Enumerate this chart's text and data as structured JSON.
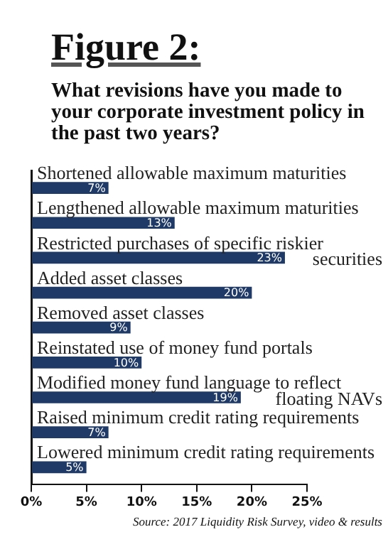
{
  "chart_data": {
    "type": "bar",
    "orientation": "horizontal",
    "title": "Figure 2:",
    "subtitle": "What revisions have you made to your corporate investment policy in the past two years?",
    "categories": [
      "Shortened allowable maximum maturities",
      "Lengthened allowable maximum maturities",
      "Restricted purchases of specific riskier securities",
      "Added asset classes",
      "Removed asset classes",
      "Reinstated use of money fund portals",
      "Modified money fund language to reflect floating NAVs",
      "Raised minimum credit rating requirements",
      "Lowered minimum credit rating requirements"
    ],
    "values": [
      7,
      13,
      23,
      20,
      9,
      10,
      19,
      7,
      5
    ],
    "value_labels": [
      "7%",
      "13%",
      "23%",
      "20%",
      "9%",
      "10%",
      "19%",
      "7%",
      "5%"
    ],
    "color": "#1f3a66",
    "xlim": [
      0,
      25
    ],
    "xticks": [
      {
        "value": 0,
        "label": "0%"
      },
      {
        "value": 5,
        "label": "5%"
      },
      {
        "value": 10,
        "label": "10%"
      },
      {
        "value": 15,
        "label": "15%"
      },
      {
        "value": 20,
        "label": "20%"
      },
      {
        "value": 25,
        "label": "25%"
      }
    ],
    "grid": false,
    "legend": false,
    "annotations": [
      "Source: 2017 Liquidity Risk Survey, video & results"
    ]
  }
}
